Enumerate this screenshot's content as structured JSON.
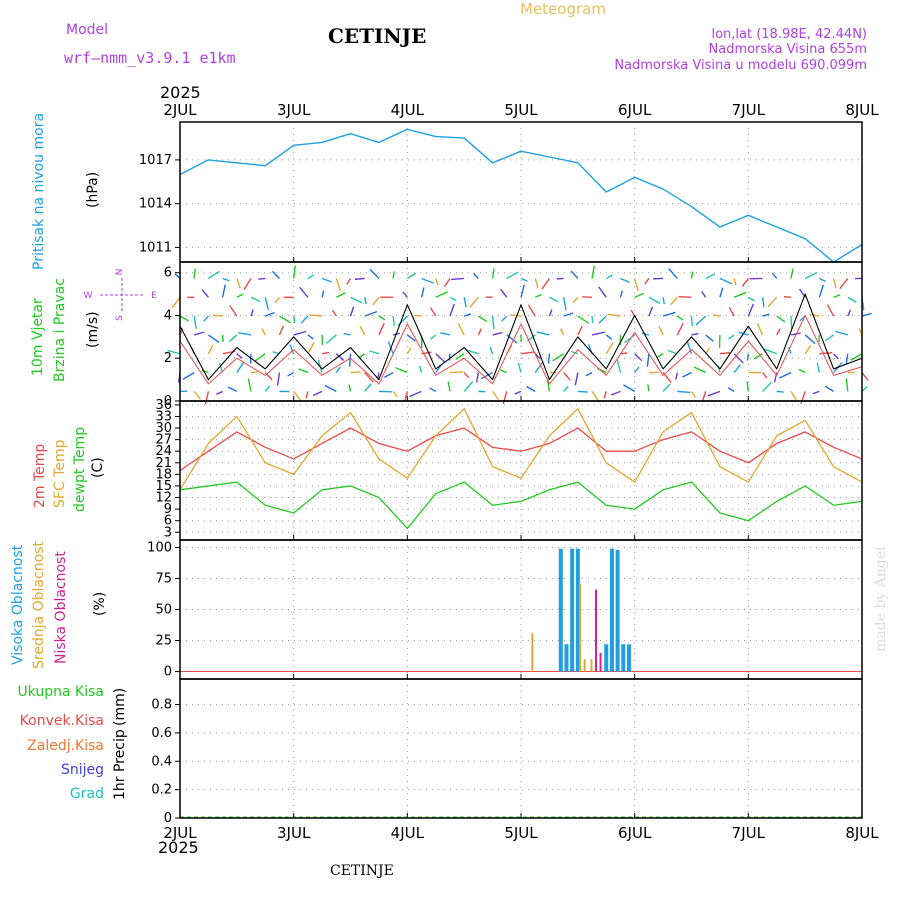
{
  "header": {
    "model_label": "Model",
    "model_name": "wrf—nmm_v3.9.1  e1km",
    "station": "CETINJE",
    "meteogram_label": "Meteogram",
    "lonlat": "lon,lat (18.98E, 42.44N)",
    "altitude": "Nadmorska Visina 655m",
    "model_altitude": "Nadmorska Visina u modelu 690.099m",
    "year": "2025",
    "footer_station": "CETINJE",
    "credit": "made by Angel"
  },
  "colors": {
    "pressure": "#1ea0e0",
    "temp2m": "#e84a4a",
    "sfc": "#e0a830",
    "dewpoint": "#22c822",
    "high_cloud": "#1ea0e0",
    "mid_cloud": "#e0a830",
    "low_cloud": "#cc2299",
    "label_purple": "#b040e0",
    "label_orange": "#e8c060"
  },
  "chart_data": [
    {
      "panel": "pressure",
      "type": "line",
      "ylabel": "Pritisak na nivou mora",
      "unit": "(hPa)",
      "x_ticks": [
        "2JUL",
        "3JUL",
        "4JUL",
        "5JUL",
        "6JUL",
        "7JUL",
        "8JUL"
      ],
      "y_ticks": [
        1011,
        1014,
        1017
      ],
      "ylim": [
        1010.0,
        1019.6
      ],
      "x": [
        0,
        0.25,
        0.5,
        0.75,
        1.0,
        1.25,
        1.5,
        1.75,
        2.0,
        2.25,
        2.5,
        2.75,
        3.0,
        3.25,
        3.5,
        3.75,
        4.0,
        4.25,
        4.5,
        4.75,
        5.0,
        5.25,
        5.5,
        5.75,
        6.0
      ],
      "values": [
        1016.0,
        1017.0,
        1016.8,
        1016.6,
        1018.0,
        1018.2,
        1018.8,
        1018.2,
        1019.1,
        1018.6,
        1018.5,
        1016.8,
        1017.6,
        1017.2,
        1016.8,
        1014.8,
        1015.8,
        1015.0,
        1013.8,
        1012.4,
        1013.2,
        1012.4,
        1011.6,
        1010.0,
        1011.2
      ],
      "grid": true
    },
    {
      "panel": "wind",
      "type": "line",
      "ylabel": "10m Vjetar Brzina i Pravac",
      "unit": "(m/s)",
      "compass": {
        "n": "N",
        "s": "S",
        "e": "E",
        "w": "W"
      },
      "y_ticks": [
        0,
        2,
        4,
        6
      ],
      "ylim": [
        0,
        6.5
      ],
      "x": [
        0,
        0.25,
        0.5,
        0.75,
        1.0,
        1.25,
        1.5,
        1.75,
        2.0,
        2.25,
        2.5,
        2.75,
        3.0,
        3.25,
        3.5,
        3.75,
        4.0,
        4.25,
        4.5,
        4.75,
        5.0,
        5.25,
        5.5,
        5.75,
        6.0
      ],
      "values": [
        3.5,
        1.0,
        2.5,
        1.5,
        3.0,
        1.5,
        2.5,
        1.0,
        4.5,
        1.5,
        2.5,
        1.0,
        4.5,
        1.0,
        3.0,
        1.5,
        4.0,
        1.5,
        3.0,
        1.5,
        3.5,
        1.5,
        5.0,
        1.5,
        2.0
      ],
      "grid": true
    },
    {
      "panel": "temperature",
      "type": "line",
      "ylabel_lines": [
        "2m Temp",
        "SFC Temp",
        "dewpt Temp"
      ],
      "unit": "(C)",
      "y_ticks": [
        3,
        6,
        9,
        12,
        15,
        18,
        21,
        24,
        27,
        30,
        33,
        36
      ],
      "ylim": [
        1,
        37
      ],
      "x": [
        0,
        0.25,
        0.5,
        0.75,
        1.0,
        1.25,
        1.5,
        1.75,
        2.0,
        2.25,
        2.5,
        2.75,
        3.0,
        3.25,
        3.5,
        3.75,
        4.0,
        4.25,
        4.5,
        4.75,
        5.0,
        5.25,
        5.5,
        5.75,
        6.0
      ],
      "series": [
        {
          "name": "2m Temp",
          "values": [
            19,
            24,
            29,
            25,
            22,
            26,
            30,
            26,
            24,
            28,
            30,
            25,
            24,
            26,
            30,
            24,
            24,
            27,
            29,
            24,
            21,
            26,
            29,
            25,
            22
          ]
        },
        {
          "name": "SFC Temp",
          "values": [
            14,
            26,
            33,
            21,
            18,
            28,
            34,
            22,
            17,
            28,
            35,
            20,
            17,
            28,
            35,
            21,
            16,
            29,
            34,
            20,
            16,
            28,
            32,
            20,
            16
          ]
        },
        {
          "name": "dewpt Temp",
          "values": [
            14,
            15,
            16,
            10,
            8,
            14,
            15,
            12,
            4,
            13,
            16,
            10,
            11,
            14,
            16,
            10,
            9,
            14,
            16,
            8,
            6,
            11,
            15,
            10,
            11
          ]
        }
      ],
      "grid": true
    },
    {
      "panel": "cloud",
      "type": "bar",
      "ylabel_lines": [
        "Visoka Oblacnost",
        "Srednja Oblacnost",
        "Niska Oblacnost"
      ],
      "unit": "(%)",
      "y_ticks": [
        0,
        25,
        50,
        75,
        100
      ],
      "ylim": [
        -6,
        106
      ],
      "series": [
        {
          "name": "Visoka Oblacnost",
          "x": [
            3.35,
            3.4,
            3.45,
            3.5,
            3.75,
            3.8,
            3.85,
            3.9,
            3.95
          ],
          "values": [
            99,
            22,
            99,
            99,
            22,
            99,
            98,
            22,
            22
          ]
        },
        {
          "name": "Srednja Oblacnost",
          "x": [
            3.1,
            3.52,
            3.56,
            3.62
          ],
          "values": [
            31,
            71,
            10,
            10
          ]
        },
        {
          "name": "Niska Oblacnost",
          "x": [
            3.66,
            3.7
          ],
          "values": [
            66,
            15
          ]
        }
      ],
      "grid": true
    },
    {
      "panel": "precipitation",
      "type": "bar",
      "ylabel": "1hr Precip",
      "unit": "(mm)",
      "legend": [
        "Ukupna Kisa",
        "Konvek.Kisa",
        "Zaledj.Kisa",
        "Snijeg",
        "Grad"
      ],
      "y_ticks": [
        0,
        0.2,
        0.4,
        0.6,
        0.8
      ],
      "ylim": [
        0,
        0.98
      ],
      "values": [],
      "grid": true
    }
  ]
}
